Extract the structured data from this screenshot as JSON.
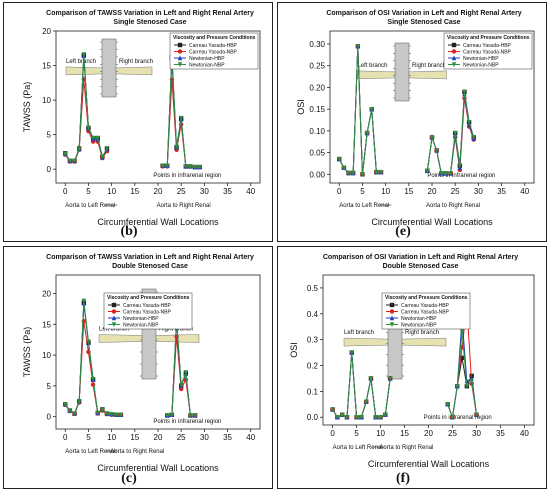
{
  "figure": {
    "panels": [
      {
        "id": "b",
        "letter": "(b)",
        "title": "Comparison of TAWSS Variation in Left and Right Renal Artery",
        "subtitle": "Single Stenosed Case",
        "legend_title": "Viscosity and Pressure Conditions",
        "branch_labels": [
          "Left branch",
          "Right branch"
        ],
        "notes": [
          "Points in infrarenal region",
          "Aorta to Left Renal",
          "Aorta to Right Renal"
        ]
      },
      {
        "id": "e",
        "letter": "(e)",
        "title": "Comparison of OSI Variation in Left and Right Renal Artery",
        "subtitle": "Single Stenosed Case",
        "legend_title": "Viscosity and Pressure Conditions",
        "branch_labels": [
          "Left branch",
          "Right branch"
        ],
        "notes": [
          "Points in infrarenal region",
          "Aorta to Left Renal",
          "Aorta to Right Renal"
        ]
      },
      {
        "id": "c",
        "letter": "(c)",
        "title": "Comparison of TAWSS Variation in Left and Right Renal Artery",
        "subtitle": "Double Stenosed Case",
        "legend_title": "Viscosity and Pressure Conditions",
        "branch_labels": [
          "Left branch",
          "Right branch"
        ],
        "notes": [
          "Points in infrarenal region",
          "Aorta to Left Renal",
          "Aorta to Right Renal"
        ]
      },
      {
        "id": "f",
        "letter": "(f)",
        "title": "Comparison of OSI Variation in Left and Right Renal Artery",
        "subtitle": "Double Stenosed Case",
        "legend_title": "Viscosity and Pressure Conditions",
        "branch_labels": [
          "Left branch",
          "Right branch"
        ],
        "notes": [
          "Points in infrarenal region",
          "Aorta to Left Renal",
          "Aorta to Right Renal"
        ]
      }
    ]
  },
  "chart_data": [
    {
      "type": "line",
      "title": "Comparison of TAWSS Variation in Left and Right Renal Artery",
      "subtitle": "Single Stenosed Case",
      "xlabel": "Circumferential Wall Locations",
      "ylabel": "TAWSS (Pa)",
      "xlim": [
        -2,
        42
      ],
      "ylim": [
        -2,
        20
      ],
      "xticks": [
        0,
        5,
        10,
        15,
        20,
        25,
        30,
        35,
        40
      ],
      "yticks": [
        0,
        5,
        10,
        15,
        20
      ],
      "x": [
        0,
        1,
        2,
        3,
        4,
        5,
        6,
        7,
        8,
        9,
        21,
        22,
        23,
        24,
        25,
        26,
        27,
        28,
        29
      ],
      "series": [
        {
          "name": "Carreau Yasuda-HBP",
          "color": "#222222",
          "marker": "square",
          "values": [
            2.3,
            1.2,
            1.2,
            3.0,
            16.5,
            6.0,
            4.5,
            4.5,
            1.8,
            3.0,
            0.5,
            0.5,
            16.2,
            3.2,
            7.3,
            0.4,
            0.4,
            0.3,
            0.3
          ]
        },
        {
          "name": "Carreau Yasuda-NBP",
          "color": "#e0201b",
          "marker": "circle",
          "values": [
            2.1,
            1.1,
            1.1,
            2.8,
            13.0,
            5.5,
            4.0,
            4.0,
            1.6,
            2.6,
            0.4,
            0.4,
            13.0,
            2.8,
            6.5,
            0.4,
            0.4,
            0.3,
            0.3
          ]
        },
        {
          "name": "Newtonian-HBP",
          "color": "#1f3fbf",
          "marker": "triangle",
          "values": [
            2.2,
            1.2,
            1.2,
            2.9,
            16.4,
            5.9,
            4.4,
            4.4,
            1.7,
            2.9,
            0.5,
            0.5,
            16.1,
            3.1,
            7.2,
            0.4,
            0.4,
            0.3,
            0.3
          ]
        },
        {
          "name": "Newtonian-NBP",
          "color": "#2f8f3f",
          "marker": "triangle-down",
          "values": [
            2.2,
            1.2,
            1.2,
            2.9,
            16.6,
            6.0,
            4.5,
            4.5,
            1.8,
            3.0,
            0.5,
            0.5,
            16.3,
            3.2,
            7.4,
            0.4,
            0.4,
            0.3,
            0.3
          ]
        }
      ],
      "annotations": [
        "Left branch",
        "Right branch",
        "Points in infrarenal region",
        "Aorta to Left Renal",
        "Aorta to Right Renal"
      ],
      "legend_position": "top-right"
    },
    {
      "type": "line",
      "title": "Comparison of OSI Variation in Left and Right Renal Artery",
      "subtitle": "Single Stenosed Case",
      "xlabel": "Circumferential Wall Locations",
      "ylabel": "OSI",
      "xlim": [
        -2,
        42
      ],
      "ylim": [
        -0.02,
        0.33
      ],
      "xticks": [
        0,
        5,
        10,
        15,
        20,
        25,
        30,
        35,
        40
      ],
      "yticks": [
        0.0,
        0.05,
        0.1,
        0.15,
        0.2,
        0.25,
        0.3
      ],
      "x": [
        0,
        1,
        2,
        3,
        4,
        5,
        6,
        7,
        8,
        9,
        19,
        20,
        21,
        22,
        23,
        24,
        25,
        26,
        27,
        28,
        29
      ],
      "series": [
        {
          "name": "Carreau Yasuda-HBP",
          "color": "#222222",
          "marker": "square",
          "values": [
            0.035,
            0.015,
            0.003,
            0.003,
            0.295,
            0.0,
            0.095,
            0.15,
            0.005,
            0.005,
            0.008,
            0.085,
            0.055,
            0.002,
            0.002,
            0.002,
            0.095,
            0.02,
            0.19,
            0.12,
            0.085
          ]
        },
        {
          "name": "Carreau Yasuda-NBP",
          "color": "#e0201b",
          "marker": "circle",
          "values": [
            0.035,
            0.015,
            0.003,
            0.003,
            0.295,
            0.0,
            0.095,
            0.15,
            0.005,
            0.005,
            0.008,
            0.085,
            0.055,
            0.002,
            0.002,
            0.002,
            0.085,
            0.01,
            0.175,
            0.11,
            0.08
          ]
        },
        {
          "name": "Newtonian-HBP",
          "color": "#1f3fbf",
          "marker": "triangle",
          "values": [
            0.035,
            0.015,
            0.003,
            0.003,
            0.295,
            0.0,
            0.095,
            0.15,
            0.005,
            0.005,
            0.008,
            0.085,
            0.055,
            0.002,
            0.002,
            0.002,
            0.09,
            0.015,
            0.185,
            0.115,
            0.082
          ]
        },
        {
          "name": "Newtonian-NBP",
          "color": "#2f8f3f",
          "marker": "triangle-down",
          "values": [
            0.035,
            0.015,
            0.003,
            0.003,
            0.295,
            0.0,
            0.095,
            0.15,
            0.005,
            0.005,
            0.008,
            0.085,
            0.055,
            0.002,
            0.002,
            0.002,
            0.095,
            0.02,
            0.19,
            0.12,
            0.085
          ]
        }
      ],
      "annotations": [
        "Left branch",
        "Right branch",
        "Points in infrarenal region",
        "Aorta to Left Renal",
        "Aorta to Right Renal"
      ],
      "legend_position": "top-right"
    },
    {
      "type": "line",
      "title": "Comparison of TAWSS Variation in Left and Right Renal Artery",
      "subtitle": "Double Stenosed Case",
      "xlabel": "Circumferential Wall Locations",
      "ylabel": "TAWSS (Pa)",
      "xlim": [
        -2,
        42
      ],
      "ylim": [
        -2,
        23
      ],
      "xticks": [
        0,
        5,
        10,
        15,
        20,
        25,
        30,
        35,
        40
      ],
      "yticks": [
        0,
        5,
        10,
        15,
        20
      ],
      "x": [
        0,
        1,
        2,
        3,
        4,
        5,
        6,
        7,
        8,
        9,
        10,
        11,
        12,
        22,
        23,
        24,
        25,
        26,
        27,
        28
      ],
      "series": [
        {
          "name": "Carreau Yasuda-HBP",
          "color": "#222222",
          "marker": "square",
          "values": [
            2.0,
            1.0,
            0.5,
            2.5,
            18.5,
            12.0,
            6.0,
            0.6,
            1.2,
            0.5,
            0.4,
            0.3,
            0.3,
            0.2,
            0.3,
            15.5,
            5.0,
            7.0,
            0.2,
            0.2
          ]
        },
        {
          "name": "Carreau Yasuda-NBP",
          "color": "#e0201b",
          "marker": "circle",
          "values": [
            1.9,
            0.9,
            0.5,
            2.3,
            15.5,
            10.5,
            5.2,
            0.5,
            1.0,
            0.4,
            0.3,
            0.3,
            0.3,
            0.2,
            0.3,
            13.0,
            4.5,
            6.0,
            0.2,
            0.2
          ]
        },
        {
          "name": "Newtonian-HBP",
          "color": "#1f3fbf",
          "marker": "triangle",
          "values": [
            2.0,
            1.0,
            0.5,
            2.5,
            18.4,
            12.0,
            6.0,
            0.6,
            1.2,
            0.5,
            0.4,
            0.3,
            0.3,
            0.2,
            0.3,
            15.4,
            5.0,
            7.0,
            0.2,
            0.2
          ]
        },
        {
          "name": "Newtonian-NBP",
          "color": "#2f8f3f",
          "marker": "triangle-down",
          "values": [
            2.0,
            1.0,
            0.5,
            2.5,
            18.8,
            12.2,
            6.1,
            0.6,
            1.2,
            0.5,
            0.4,
            0.3,
            0.3,
            0.2,
            0.3,
            15.8,
            5.1,
            7.2,
            0.2,
            0.2
          ]
        }
      ],
      "annotations": [
        "Left branch",
        "Right branch",
        "Points in infrarenal region",
        "Aorta to Left Renal",
        "Aorta to Right Renal"
      ],
      "legend_position": "top-right"
    },
    {
      "type": "line",
      "title": "Comparison of OSI Variation in Left and Right Renal Artery",
      "subtitle": "Double Stenosed Case",
      "xlabel": "Circumferential Wall Locations",
      "ylabel": "OSI",
      "xlim": [
        -2,
        42
      ],
      "ylim": [
        -0.03,
        0.55
      ],
      "xticks": [
        0,
        5,
        10,
        15,
        20,
        25,
        30,
        35,
        40
      ],
      "yticks": [
        0.0,
        0.1,
        0.2,
        0.3,
        0.4,
        0.5
      ],
      "x": [
        0,
        1,
        2,
        3,
        4,
        5,
        6,
        7,
        8,
        9,
        10,
        11,
        12,
        24,
        25,
        26,
        27,
        28,
        29,
        30
      ],
      "series": [
        {
          "name": "Carreau Yasuda-HBP",
          "color": "#222222",
          "marker": "square",
          "values": [
            0.03,
            0.0,
            0.01,
            0.0,
            0.25,
            0.0,
            0.0,
            0.06,
            0.15,
            0.0,
            0.0,
            0.01,
            0.15,
            0.05,
            0.0,
            0.12,
            0.23,
            0.12,
            0.16,
            0.01
          ]
        },
        {
          "name": "Carreau Yasuda-NBP",
          "color": "#e0201b",
          "marker": "circle",
          "values": [
            0.03,
            0.0,
            0.01,
            0.0,
            0.25,
            0.0,
            0.0,
            0.06,
            0.15,
            0.0,
            0.0,
            0.01,
            0.15,
            0.05,
            0.0,
            0.12,
            0.27,
            0.43,
            0.13,
            0.01
          ]
        },
        {
          "name": "Newtonian-HBP",
          "color": "#1f3fbf",
          "marker": "triangle",
          "values": [
            0.03,
            0.0,
            0.01,
            0.0,
            0.25,
            0.0,
            0.0,
            0.06,
            0.15,
            0.0,
            0.0,
            0.01,
            0.15,
            0.05,
            0.0,
            0.12,
            0.38,
            0.14,
            0.15,
            0.01
          ]
        },
        {
          "name": "Newtonian-NBP",
          "color": "#2f8f3f",
          "marker": "triangle-down",
          "values": [
            0.03,
            0.0,
            0.01,
            0.0,
            0.25,
            0.0,
            0.0,
            0.06,
            0.15,
            0.0,
            0.0,
            0.01,
            0.15,
            0.05,
            0.0,
            0.12,
            0.33,
            0.12,
            0.14,
            0.01
          ]
        }
      ],
      "annotations": [
        "Left branch",
        "Right branch",
        "Points in infrarenal region",
        "Aorta to Left Renal",
        "Aorta to Right Renal"
      ],
      "legend_position": "top-right"
    }
  ]
}
